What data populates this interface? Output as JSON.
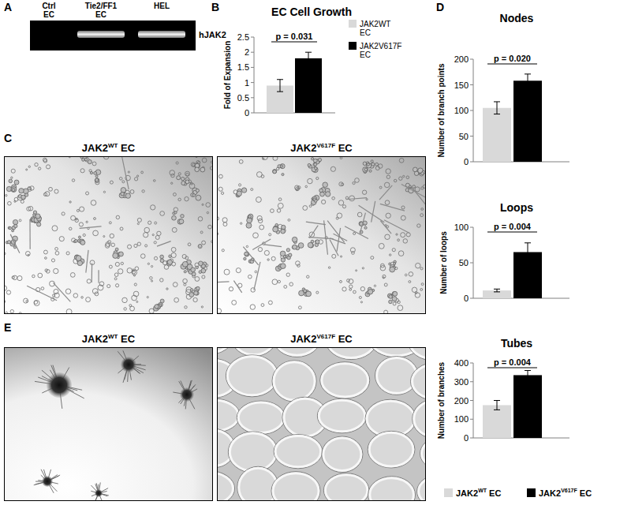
{
  "figure": {
    "panels": [
      "A",
      "B",
      "C",
      "D",
      "E"
    ],
    "gel": {
      "lanes": [
        "Ctrl EC",
        "Tie2/FF1 EC",
        "HEL"
      ],
      "bands": [
        false,
        true,
        true
      ],
      "band_label": "hJAK2"
    },
    "images": {
      "C": [
        {
          "base": "JAK2",
          "sup": "WT",
          "tail": " EC"
        },
        {
          "base": "JAK2",
          "sup": "V617F",
          "tail": " EC"
        }
      ],
      "E": [
        {
          "base": "JAK2",
          "sup": "WT",
          "tail": " EC"
        },
        {
          "base": "JAK2",
          "sup": "V617F",
          "tail": " EC"
        }
      ]
    },
    "legend": [
      {
        "base": "JAK2",
        "sup": "WT",
        "tail": " EC",
        "color": "#d9d9d9"
      },
      {
        "base": "JAK2",
        "sup": "V617F",
        "tail": " EC",
        "color": "#000000"
      }
    ]
  },
  "chart_data": [
    {
      "type": "bar",
      "title": "EC Cell Growth",
      "y_label": "Fold of Expansion",
      "categories": [
        null
      ],
      "series": [
        {
          "name": "JAK2WT EC",
          "color": "#d9d9d9",
          "values": [
            0.9
          ],
          "errors": [
            0.2
          ]
        },
        {
          "name": "JAK2V617F EC",
          "color": "#000000",
          "values": [
            1.8
          ],
          "errors": [
            0.2
          ]
        }
      ],
      "ylim": [
        0,
        2.5
      ],
      "yticks": [
        0,
        0.5,
        1,
        1.5,
        2,
        2.5
      ],
      "legend": "right",
      "annotations": [
        "p = 0.031"
      ]
    },
    {
      "type": "bar",
      "title": "Nodes",
      "y_label": "Number of branch points",
      "categories": [
        null
      ],
      "series": [
        {
          "color": "#d9d9d9",
          "values": [
            105
          ],
          "errors": [
            12
          ]
        },
        {
          "color": "#000000",
          "values": [
            158
          ],
          "errors": [
            13
          ]
        }
      ],
      "ylim": [
        0,
        200
      ],
      "yticks": [
        0,
        50,
        100,
        150,
        200
      ],
      "annotations": [
        "p = 0.020"
      ]
    },
    {
      "type": "bar",
      "title": "Loops",
      "y_label": "Number of loops",
      "categories": [
        null
      ],
      "series": [
        {
          "color": "#d9d9d9",
          "values": [
            11
          ],
          "errors": [
            2
          ]
        },
        {
          "color": "#000000",
          "values": [
            65
          ],
          "errors": [
            13
          ]
        }
      ],
      "ylim": [
        0,
        100
      ],
      "yticks": [
        0,
        50,
        100
      ],
      "annotations": [
        "p = 0.004"
      ]
    },
    {
      "type": "bar",
      "title": "Tubes",
      "y_label": "Number of branches",
      "categories": [
        null
      ],
      "series": [
        {
          "color": "#d9d9d9",
          "values": [
            175
          ],
          "errors": [
            25
          ]
        },
        {
          "color": "#000000",
          "values": [
            335
          ],
          "errors": [
            25
          ]
        }
      ],
      "ylim": [
        0,
        400
      ],
      "yticks": [
        0,
        100,
        200,
        300,
        400
      ],
      "annotations": [
        "p = 0.004"
      ]
    }
  ]
}
